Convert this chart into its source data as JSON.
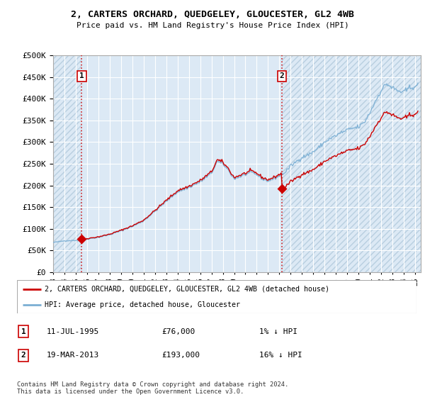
{
  "title": "2, CARTERS ORCHARD, QUEDGELEY, GLOUCESTER, GL2 4WB",
  "subtitle": "Price paid vs. HM Land Registry's House Price Index (HPI)",
  "legend_label_red": "2, CARTERS ORCHARD, QUEDGELEY, GLOUCESTER, GL2 4WB (detached house)",
  "legend_label_blue": "HPI: Average price, detached house, Gloucester",
  "annotation1_date": "11-JUL-1995",
  "annotation1_price": "£76,000",
  "annotation1_hpi": "1% ↓ HPI",
  "annotation2_date": "19-MAR-2013",
  "annotation2_price": "£193,000",
  "annotation2_hpi": "16% ↓ HPI",
  "footnote": "Contains HM Land Registry data © Crown copyright and database right 2024.\nThis data is licensed under the Open Government Licence v3.0.",
  "hpi_color": "#7bafd4",
  "price_color": "#cc0000",
  "point_color": "#cc0000",
  "dashed_color": "#cc0000",
  "bg_color": "#dce9f5",
  "hatch_color": "#b8cfe0",
  "ylim": [
    0,
    500000
  ],
  "yticks": [
    0,
    50000,
    100000,
    150000,
    200000,
    250000,
    300000,
    350000,
    400000,
    450000,
    500000
  ],
  "sale1_x": 1995.536,
  "sale1_y": 76000,
  "sale2_x": 2013.208,
  "sale2_y": 193000,
  "xmin": 1993.0,
  "xmax": 2025.5
}
